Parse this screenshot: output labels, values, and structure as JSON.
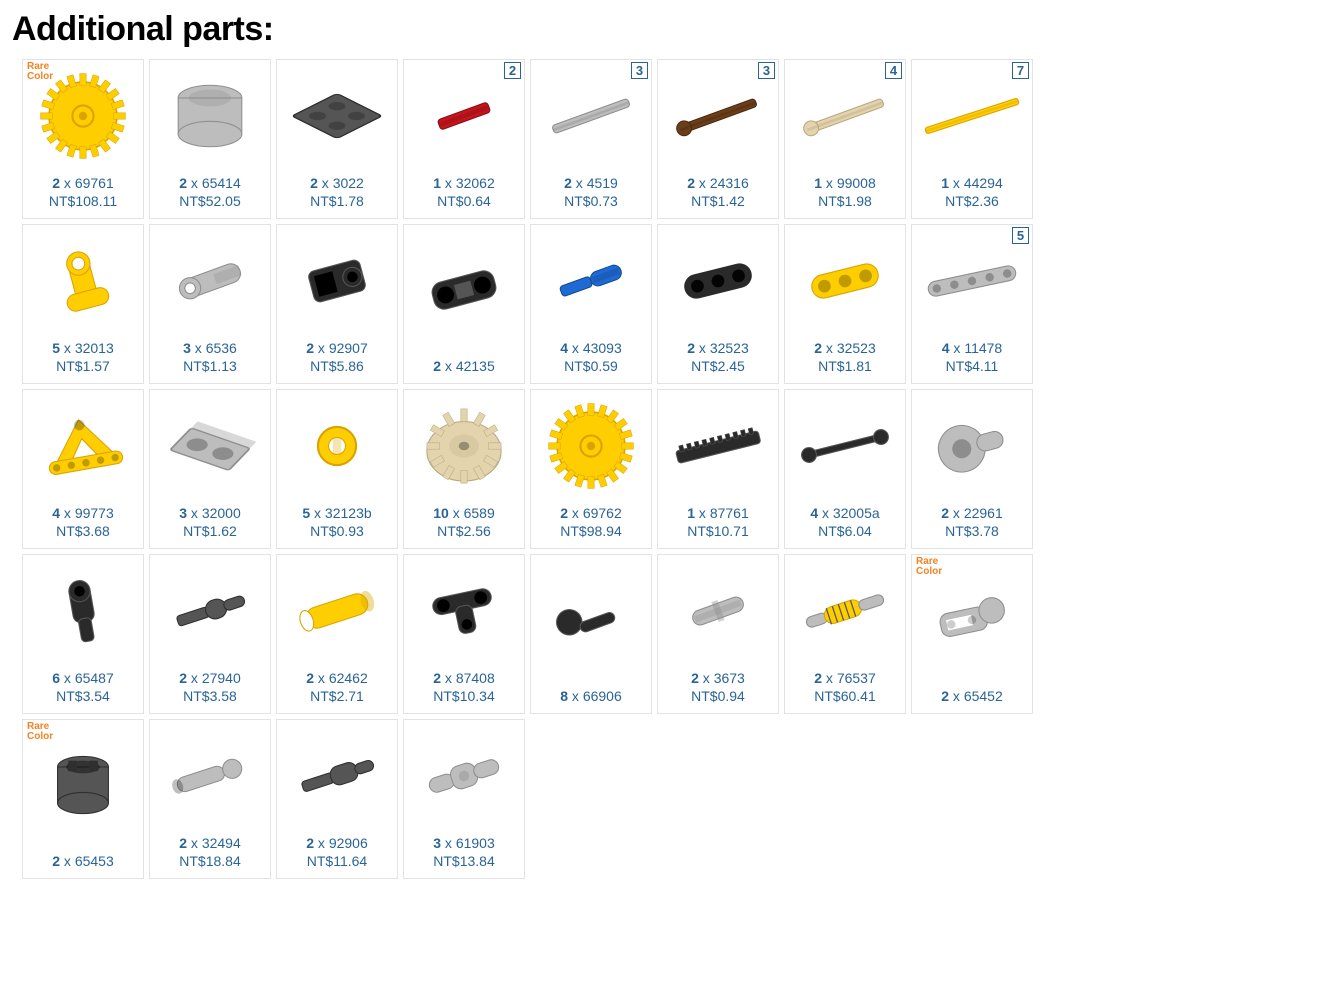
{
  "title": "Additional parts:",
  "colors": {
    "link": "#2a6496",
    "border": "#e3e3e3",
    "rare": "#f5821f",
    "yellow": "#ffce00",
    "yellow_dark": "#d9a400",
    "red": "#c4151c",
    "red_dark": "#8a0f14",
    "tan": "#e3d4ae",
    "tan_dark": "#b8a77f",
    "ltgray": "#bdbdbd",
    "ltgray_dark": "#8f8f8f",
    "dkgray": "#555555",
    "dkgray_dark": "#2f2f2f",
    "black": "#2a2a2a",
    "black_hi": "#555",
    "brown": "#6b3e1a",
    "brown_dark": "#4a2a10",
    "blue": "#1e69d2",
    "blue_dark": "#154a96"
  },
  "rare_label": "Rare\nColor",
  "parts": [
    {
      "qty": 2,
      "id": "69761",
      "price": "NT$108.11",
      "rare": true,
      "badge": null,
      "shape": "gear",
      "fill": "yellow"
    },
    {
      "qty": 2,
      "id": "65414",
      "price": "NT$52.05",
      "rare": false,
      "badge": null,
      "shape": "drum",
      "fill": "ltgray"
    },
    {
      "qty": 2,
      "id": "3022",
      "price": "NT$1.78",
      "rare": false,
      "badge": null,
      "shape": "plate",
      "fill": "dkgray"
    },
    {
      "qty": 1,
      "id": "32062",
      "price": "NT$0.64",
      "rare": false,
      "badge": "2",
      "shape": "axle_short",
      "fill": "red"
    },
    {
      "qty": 2,
      "id": "4519",
      "price": "NT$0.73",
      "rare": false,
      "badge": "3",
      "shape": "axle",
      "fill": "ltgray"
    },
    {
      "qty": 2,
      "id": "24316",
      "price": "NT$1.42",
      "rare": false,
      "badge": "3",
      "shape": "axle_stop",
      "fill": "brown"
    },
    {
      "qty": 1,
      "id": "99008",
      "price": "NT$1.98",
      "rare": false,
      "badge": "4",
      "shape": "axle_stop",
      "fill": "tan"
    },
    {
      "qty": 1,
      "id": "44294",
      "price": "NT$2.36",
      "rare": false,
      "badge": "7",
      "shape": "axle_long",
      "fill": "yellow"
    },
    {
      "qty": 5,
      "id": "32013",
      "price": "NT$1.57",
      "rare": false,
      "badge": null,
      "shape": "conn_t",
      "fill": "yellow"
    },
    {
      "qty": 3,
      "id": "6536",
      "price": "NT$1.13",
      "rare": false,
      "badge": null,
      "shape": "conn_x",
      "fill": "ltgray"
    },
    {
      "qty": 2,
      "id": "92907",
      "price": "NT$5.86",
      "rare": false,
      "badge": null,
      "shape": "conn_fork",
      "fill": "black"
    },
    {
      "qty": 2,
      "id": "42135",
      "price": null,
      "rare": false,
      "badge": null,
      "shape": "conn_dbl",
      "fill": "black"
    },
    {
      "qty": 4,
      "id": "43093",
      "price": "NT$0.59",
      "rare": false,
      "badge": null,
      "shape": "pin_axle",
      "fill": "blue"
    },
    {
      "qty": 2,
      "id": "32523",
      "price": "NT$2.45",
      "rare": false,
      "badge": null,
      "shape": "liftarm3",
      "fill": "black"
    },
    {
      "qty": 2,
      "id": "32523",
      "price": "NT$1.81",
      "rare": false,
      "badge": null,
      "shape": "liftarm3",
      "fill": "yellow"
    },
    {
      "qty": 4,
      "id": "11478",
      "price": "NT$4.11",
      "rare": false,
      "badge": "5",
      "shape": "liftarm5",
      "fill": "ltgray"
    },
    {
      "qty": 4,
      "id": "99773",
      "price": "NT$3.68",
      "rare": false,
      "badge": null,
      "shape": "tri_arm",
      "fill": "yellow"
    },
    {
      "qty": 3,
      "id": "32000",
      "price": "NT$1.62",
      "rare": false,
      "badge": null,
      "shape": "brick2h",
      "fill": "ltgray"
    },
    {
      "qty": 5,
      "id": "32123b",
      "price": "NT$0.93",
      "rare": false,
      "badge": null,
      "shape": "bush",
      "fill": "yellow"
    },
    {
      "qty": 10,
      "id": "6589",
      "price": "NT$2.56",
      "rare": false,
      "badge": null,
      "shape": "bevel_gear",
      "fill": "tan"
    },
    {
      "qty": 2,
      "id": "69762",
      "price": "NT$98.94",
      "rare": false,
      "badge": null,
      "shape": "gear",
      "fill": "yellow"
    },
    {
      "qty": 1,
      "id": "87761",
      "price": "NT$10.71",
      "rare": false,
      "badge": null,
      "shape": "rack",
      "fill": "black"
    },
    {
      "qty": 4,
      "id": "32005a",
      "price": "NT$6.04",
      "rare": false,
      "badge": null,
      "shape": "link",
      "fill": "black"
    },
    {
      "qty": 2,
      "id": "22961",
      "price": "NT$3.78",
      "rare": false,
      "badge": null,
      "shape": "hub",
      "fill": "ltgray"
    },
    {
      "qty": 6,
      "id": "65487",
      "price": "NT$3.54",
      "rare": false,
      "badge": null,
      "shape": "conn_t2",
      "fill": "black"
    },
    {
      "qty": 2,
      "id": "27940",
      "price": "NT$3.58",
      "rare": false,
      "badge": null,
      "shape": "conn_axpin",
      "fill": "dkgray"
    },
    {
      "qty": 2,
      "id": "62462",
      "price": "NT$2.71",
      "rare": false,
      "badge": null,
      "shape": "tube",
      "fill": "yellow"
    },
    {
      "qty": 2,
      "id": "87408",
      "price": "NT$10.34",
      "rare": false,
      "badge": null,
      "shape": "conn_3p",
      "fill": "black"
    },
    {
      "qty": 8,
      "id": "66906",
      "price": null,
      "rare": false,
      "badge": null,
      "shape": "ball_pin",
      "fill": "black"
    },
    {
      "qty": 2,
      "id": "3673",
      "price": "NT$0.94",
      "rare": false,
      "badge": null,
      "shape": "pin",
      "fill": "ltgray"
    },
    {
      "qty": 2,
      "id": "76537",
      "price": "NT$60.41",
      "rare": false,
      "badge": null,
      "shape": "shock",
      "fill": "yellow"
    },
    {
      "qty": 2,
      "id": "65452",
      "price": null,
      "rare": true,
      "badge": null,
      "shape": "ball_fork",
      "fill": "ltgray"
    },
    {
      "qty": 2,
      "id": "65453",
      "price": null,
      "rare": true,
      "badge": null,
      "shape": "cup",
      "fill": "dkgray"
    },
    {
      "qty": 2,
      "id": "32494",
      "price": "NT$18.84",
      "rare": false,
      "badge": null,
      "shape": "rod_ball",
      "fill": "ltgray"
    },
    {
      "qty": 2,
      "id": "92906",
      "price": "NT$11.64",
      "rare": false,
      "badge": null,
      "shape": "axle_conn",
      "fill": "dkgray"
    },
    {
      "qty": 3,
      "id": "61903",
      "price": "NT$13.84",
      "rare": false,
      "badge": null,
      "shape": "cv_joint",
      "fill": "ltgray"
    }
  ]
}
